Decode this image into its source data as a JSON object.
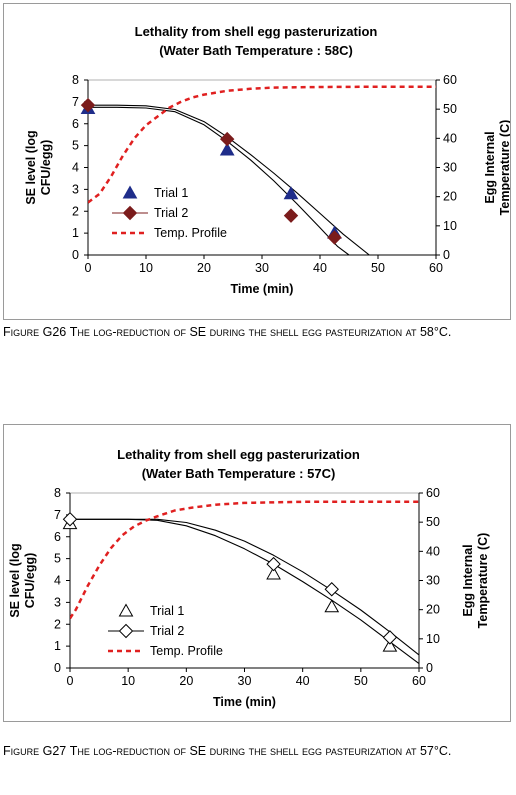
{
  "charts": [
    {
      "title": "Lethality from shell egg pasterurization",
      "subtitle": "(Water Bath Temperature : 58C)",
      "xlabel": "Time (min)",
      "ylabel_left_1": "SE level (log",
      "ylabel_left_2": "CFU/egg)",
      "ylabel_right_1": "Egg Internal",
      "ylabel_right_2": "Temperature (C)",
      "caption_fig": "Figure G26",
      "caption_text": "The log-reduction of SE during the shell egg pasteurization at 58°C."
    },
    {
      "title": "Lethality from shell egg pasterurization",
      "subtitle": "(Water Bath Temperature : 57C)",
      "xlabel": "Time (min)",
      "ylabel_left_1": "SE level (log",
      "ylabel_left_2": "CFU/egg)",
      "ylabel_right_1": "Egg Internal",
      "ylabel_right_2": "Temperature (C)",
      "caption_fig": "Figure G27",
      "caption_text": "The log-reduction of SE during the shell egg pasteurization at 57°C."
    }
  ],
  "chart_data": [
    {
      "type": "scatter",
      "title": "Lethality from shell egg pasterurization",
      "subtitle": "(Water Bath Temperature : 58C)",
      "xlabel": "Time (min)",
      "ylabel": "SE level (log CFU/egg)",
      "y2label": "Egg Internal Temperature (C)",
      "xlim": [
        0,
        60
      ],
      "ylim": [
        0,
        8
      ],
      "y2lim": [
        0,
        60
      ],
      "xticks": [
        0,
        10,
        20,
        30,
        40,
        50,
        60
      ],
      "yticks": [
        0,
        1,
        2,
        3,
        4,
        5,
        6,
        7,
        8
      ],
      "y2ticks": [
        0,
        10,
        20,
        30,
        40,
        50,
        60
      ],
      "legend_position": "left",
      "series": [
        {
          "name": "Trial 1",
          "kind": "points",
          "marker": "triangle-filled",
          "color": "#1f2d8a",
          "x": [
            0,
            24,
            35,
            42.5
          ],
          "y": [
            6.7,
            4.8,
            2.8,
            1.0
          ]
        },
        {
          "name": "Trial 2",
          "kind": "points",
          "marker": "diamond-filled",
          "color": "#7b1c1c",
          "x": [
            0,
            24,
            35,
            42.5
          ],
          "y": [
            6.85,
            5.3,
            1.8,
            0.8
          ]
        },
        {
          "name": "Trial 2 model",
          "kind": "line",
          "color": "#000000",
          "x": [
            0,
            5,
            10,
            15,
            20,
            24,
            28,
            32,
            36,
            40,
            43,
            45
          ],
          "y": [
            6.75,
            6.75,
            6.72,
            6.55,
            5.95,
            5.2,
            4.35,
            3.4,
            2.35,
            1.25,
            0.4,
            0
          ]
        },
        {
          "name": "Trial 1 model",
          "kind": "line",
          "color": "#000000",
          "x": [
            0,
            5,
            10,
            15,
            20,
            24,
            28,
            32,
            36,
            40,
            44,
            48.5
          ],
          "y": [
            6.85,
            6.85,
            6.82,
            6.65,
            6.1,
            5.4,
            4.6,
            3.75,
            2.85,
            1.9,
            0.95,
            0
          ]
        },
        {
          "name": "Temp. Profile",
          "kind": "dashed-line",
          "axis": "right",
          "color": "#e02020",
          "x": [
            0,
            2,
            4,
            6,
            8,
            10,
            12,
            14,
            16,
            18,
            20,
            24,
            28,
            32,
            40,
            50,
            60
          ],
          "y": [
            18,
            21,
            27,
            34,
            40,
            44.5,
            47.5,
            50.5,
            52.5,
            54,
            55,
            56.3,
            57,
            57.4,
            57.6,
            57.7,
            57.7
          ]
        }
      ]
    },
    {
      "type": "scatter",
      "title": "Lethality from shell egg pasterurization",
      "subtitle": "(Water Bath Temperature : 57C)",
      "xlabel": "Time (min)",
      "ylabel": "SE level (log CFU/egg)",
      "y2label": "Egg Internal Temperature (C)",
      "xlim": [
        0,
        60
      ],
      "ylim": [
        0,
        8
      ],
      "y2lim": [
        0,
        60
      ],
      "xticks": [
        0,
        10,
        20,
        30,
        40,
        50,
        60
      ],
      "yticks": [
        0,
        1,
        2,
        3,
        4,
        5,
        6,
        7,
        8
      ],
      "y2ticks": [
        0,
        10,
        20,
        30,
        40,
        50,
        60
      ],
      "legend_position": "left",
      "series": [
        {
          "name": "Trial 1",
          "kind": "points",
          "marker": "triangle-open",
          "color": "#000000",
          "x": [
            0,
            35,
            45,
            55
          ],
          "y": [
            6.6,
            4.3,
            2.8,
            1.0
          ]
        },
        {
          "name": "Trial 2",
          "kind": "points",
          "marker": "diamond-open",
          "color": "#000000",
          "x": [
            0,
            35,
            45,
            55
          ],
          "y": [
            6.8,
            4.75,
            3.6,
            1.4
          ]
        },
        {
          "name": "Trial 1 model",
          "kind": "line",
          "color": "#000000",
          "x": [
            0,
            10,
            15,
            20,
            25,
            30,
            35,
            40,
            45,
            50,
            55,
            60
          ],
          "y": [
            6.8,
            6.8,
            6.75,
            6.5,
            6.05,
            5.45,
            4.75,
            3.95,
            3.1,
            2.2,
            1.2,
            0.2
          ]
        },
        {
          "name": "Trial 2 model",
          "kind": "line",
          "color": "#000000",
          "x": [
            0,
            10,
            15,
            20,
            25,
            30,
            35,
            40,
            45,
            50,
            55,
            60
          ],
          "y": [
            6.8,
            6.8,
            6.8,
            6.65,
            6.3,
            5.8,
            5.15,
            4.4,
            3.55,
            2.65,
            1.65,
            0.6
          ]
        },
        {
          "name": "Temp. Profile",
          "kind": "dashed-line",
          "axis": "right",
          "color": "#e02020",
          "x": [
            0,
            1,
            3,
            5,
            7,
            9,
            11,
            13,
            15,
            18,
            21,
            25,
            30,
            40,
            50,
            60
          ],
          "y": [
            17,
            20,
            28,
            35,
            41,
            45.5,
            48.5,
            50.5,
            52,
            54,
            55,
            56,
            56.6,
            57,
            57,
            57
          ]
        }
      ]
    }
  ]
}
